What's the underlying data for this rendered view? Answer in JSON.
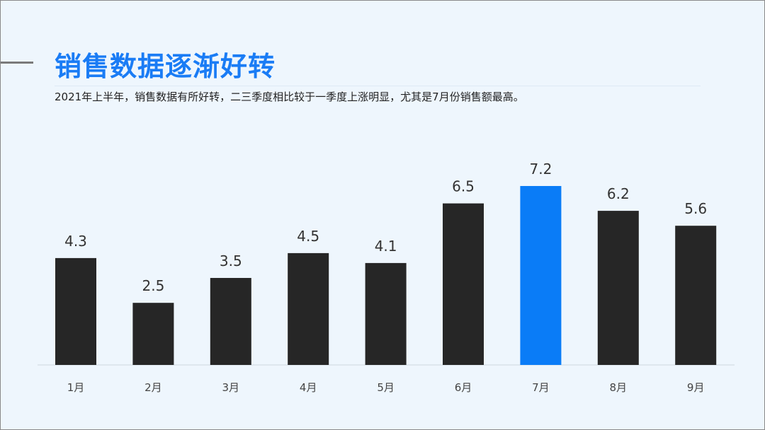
{
  "header": {
    "title": "销售数据逐渐好转",
    "subtitle": "2021年上半年，销售数据有所好转，二三季度相比较于一季度上涨明显，尤其是7月份销售额最高。"
  },
  "colors": {
    "title": "#1a7cf5",
    "bar": "#262626",
    "highlight": "#0a7cf7",
    "background": "#eef6fd"
  },
  "chart_data": {
    "type": "bar",
    "categories": [
      "1月",
      "2月",
      "3月",
      "4月",
      "5月",
      "6月",
      "7月",
      "8月",
      "9月"
    ],
    "values": [
      4.3,
      2.5,
      3.5,
      4.5,
      4.1,
      6.5,
      7.2,
      6.2,
      5.6
    ],
    "data_labels": [
      "4.3",
      "2.5",
      "3.5",
      "4.5",
      "4.1",
      "6.5",
      "7.2",
      "6.2",
      "5.6"
    ],
    "highlight_category": "7月",
    "ylim": [
      0,
      7.2
    ],
    "grid": false,
    "legend": "none"
  }
}
